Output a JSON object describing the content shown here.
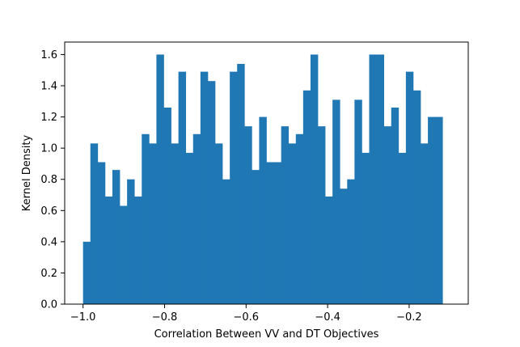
{
  "chart_data": {
    "type": "bar",
    "xlabel": "Correlation Between VV and DT Objectives",
    "ylabel": "Kernel Density",
    "xlim": [
      -1.045,
      -0.055
    ],
    "ylim": [
      0.0,
      1.68
    ],
    "grid": false,
    "bar_color": "#1f77b4",
    "bin_start": -1.0,
    "bin_width": 0.018,
    "values": [
      0.4,
      1.03,
      0.91,
      0.69,
      0.86,
      0.63,
      0.8,
      0.69,
      1.09,
      1.03,
      1.6,
      1.26,
      1.03,
      1.49,
      0.97,
      1.09,
      1.49,
      1.43,
      1.03,
      0.8,
      1.49,
      1.54,
      1.14,
      0.86,
      1.2,
      0.91,
      0.91,
      1.14,
      1.03,
      1.09,
      1.37,
      1.6,
      1.14,
      0.69,
      1.31,
      0.74,
      0.8,
      1.31,
      0.97,
      1.6,
      1.6,
      1.14,
      1.26,
      0.97,
      1.49,
      1.37,
      1.03,
      1.2,
      1.2
    ],
    "xticks": [
      -1.0,
      -0.8,
      -0.6,
      -0.4,
      -0.2
    ],
    "xtick_labels": [
      "−1.0",
      "−0.8",
      "−0.6",
      "−0.4",
      "−0.2"
    ],
    "yticks": [
      0.0,
      0.2,
      0.4,
      0.6,
      0.8,
      1.0,
      1.2,
      1.4,
      1.6
    ],
    "ytick_labels": [
      "0.0",
      "0.2",
      "0.4",
      "0.6",
      "0.8",
      "1.0",
      "1.2",
      "1.4",
      "1.6"
    ]
  }
}
